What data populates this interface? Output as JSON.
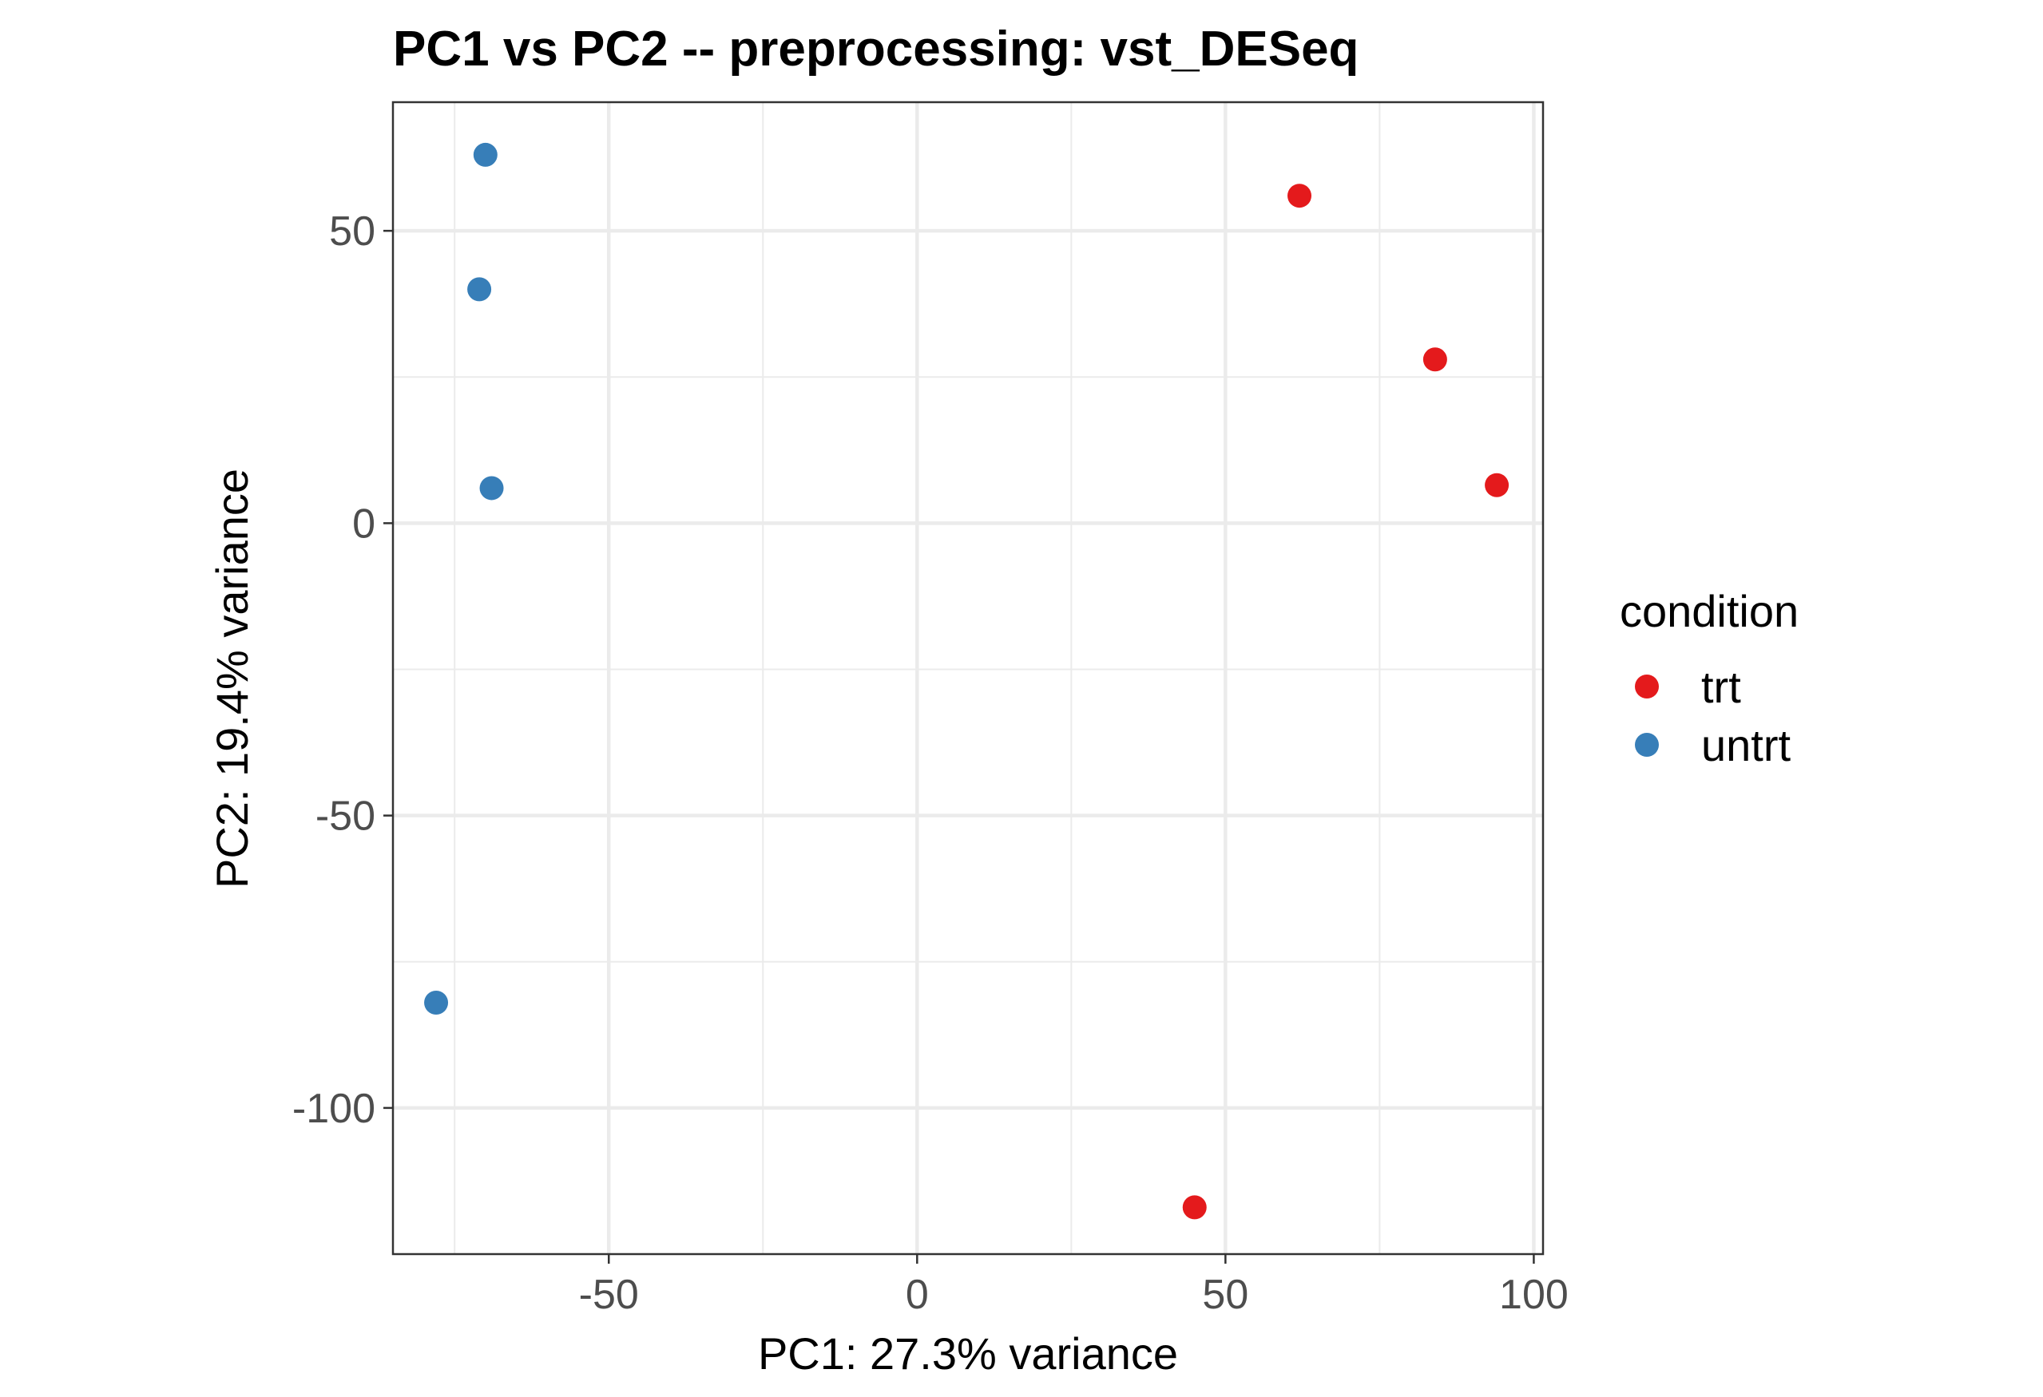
{
  "chart_data": {
    "type": "scatter",
    "title": "PC1 vs PC2 -- preprocessing: vst_DESeq",
    "xlabel": "PC1: 27.3% variance",
    "ylabel": "PC2: 19.4% variance",
    "xlim": [
      -85,
      101.5
    ],
    "ylim": [
      -125,
      72
    ],
    "x_ticks": [
      -50,
      0,
      50,
      100
    ],
    "x_tick_labels": [
      "-50",
      "0",
      "50",
      "100"
    ],
    "y_ticks": [
      -100,
      -50,
      0,
      50
    ],
    "y_tick_labels": [
      "-100",
      "-50",
      "0",
      "50"
    ],
    "grid": true,
    "legend": {
      "title": "condition",
      "placement": "right",
      "entries": [
        "trt",
        "untrt"
      ]
    },
    "series": [
      {
        "name": "trt",
        "color": "#e41a1c",
        "points": [
          {
            "x": 62,
            "y": 56
          },
          {
            "x": 84,
            "y": 28
          },
          {
            "x": 94,
            "y": 6.5
          },
          {
            "x": 45,
            "y": -117
          }
        ]
      },
      {
        "name": "untrt",
        "color": "#377eb8",
        "points": [
          {
            "x": -70,
            "y": 63
          },
          {
            "x": -71,
            "y": 40
          },
          {
            "x": -69,
            "y": 6
          },
          {
            "x": -78,
            "y": -82
          }
        ]
      }
    ]
  }
}
